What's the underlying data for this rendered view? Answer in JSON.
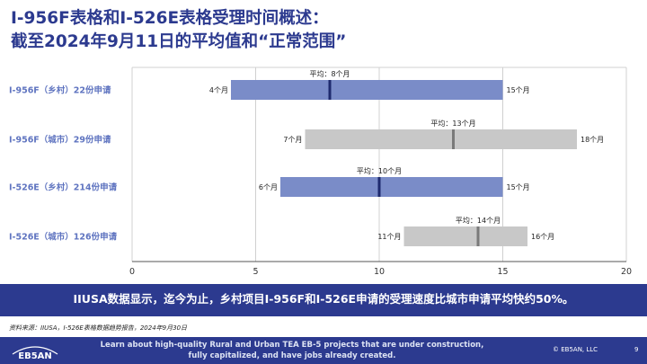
{
  "title": {
    "line1": "I-956F表格和I-526E表格受理时间概述：",
    "line2": "截至2024年9月11日的平均值和“正常范围”"
  },
  "chart_data": {
    "type": "range-bar",
    "title": "",
    "xlabel": "",
    "ylabel": "",
    "xlim": [
      0,
      20
    ],
    "xticks": [
      0,
      5,
      10,
      15,
      20
    ],
    "grid": true,
    "categories": [
      "I-956F（乡村）22份申请",
      "I-956F（城市）29份申请",
      "I-526E（乡村）214份申请",
      "I-526E（城市）126份申请"
    ],
    "series": [
      {
        "min": 4,
        "avg": 8,
        "max": 15,
        "min_label": "4个月",
        "avg_label": "平均：8个月",
        "max_label": "15个月",
        "color": "#7a8cc8",
        "avg_color": "#1e2a6e"
      },
      {
        "min": 7,
        "avg": 13,
        "max": 18,
        "min_label": "7个月",
        "avg_label": "平均：13个月",
        "max_label": "18个月",
        "color": "#c8c8c8",
        "avg_color": "#7a7a7a"
      },
      {
        "min": 6,
        "avg": 10,
        "max": 15,
        "min_label": "6个月",
        "avg_label": "平均：10个月",
        "max_label": "15个月",
        "color": "#7a8cc8",
        "avg_color": "#1e2a6e"
      },
      {
        "min": 11,
        "avg": 14,
        "max": 16,
        "min_label": "11个月",
        "avg_label": "平均：14个月",
        "max_label": "16个月",
        "color": "#c8c8c8",
        "avg_color": "#7a7a7a"
      }
    ]
  },
  "banner": "IIUSA数据显示，迄今为止，乡村项目I-956F和I-526E申请的受理速度比城市申请平均快约50%。",
  "source": "资料来源：IIUSA，I-526E表格数据趋势报告，2024年9月30日",
  "footer": {
    "logo_text": "EB5AN",
    "line1": "Learn about high-quality Rural and Urban TEA EB-5 projects that are under construction,",
    "line2": "fully capitalized, and have jobs already created.",
    "copyright": "© EB5AN, LLC",
    "page": "9"
  },
  "colors": {
    "brand_blue": "#2c3a8f",
    "category_label": "#5f74c0"
  }
}
